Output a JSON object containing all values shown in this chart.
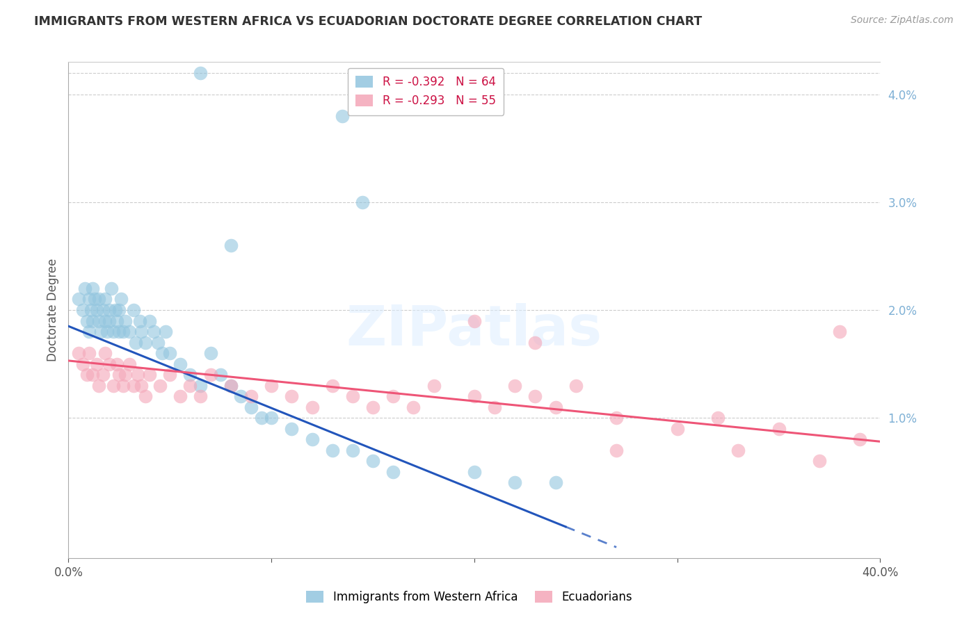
{
  "title": "IMMIGRANTS FROM WESTERN AFRICA VS ECUADORIAN DOCTORATE DEGREE CORRELATION CHART",
  "source": "Source: ZipAtlas.com",
  "ylabel": "Doctorate Degree",
  "xlim": [
    0.0,
    0.4
  ],
  "ylim": [
    -0.003,
    0.043
  ],
  "legend_blue_r": "R = -0.392",
  "legend_blue_n": "N = 64",
  "legend_pink_r": "R = -0.293",
  "legend_pink_n": "N = 55",
  "blue_color": "#92C5DE",
  "pink_color": "#F4A6B8",
  "trend_blue_color": "#2255BB",
  "trend_pink_color": "#EE5577",
  "ytick_vals": [
    0.01,
    0.02,
    0.03,
    0.04
  ],
  "ytick_labels": [
    "1.0%",
    "2.0%",
    "3.0%",
    "4.0%"
  ],
  "grid_color": "#CCCCCC",
  "watermark_text": "ZIPatlas",
  "blue_x": [
    0.005,
    0.007,
    0.008,
    0.009,
    0.01,
    0.01,
    0.011,
    0.012,
    0.012,
    0.013,
    0.014,
    0.015,
    0.015,
    0.016,
    0.017,
    0.018,
    0.018,
    0.019,
    0.02,
    0.02,
    0.021,
    0.022,
    0.023,
    0.024,
    0.025,
    0.025,
    0.026,
    0.027,
    0.028,
    0.03,
    0.032,
    0.033,
    0.035,
    0.036,
    0.038,
    0.04,
    0.042,
    0.044,
    0.046,
    0.048,
    0.05,
    0.055,
    0.06,
    0.065,
    0.07,
    0.075,
    0.08,
    0.085,
    0.09,
    0.095,
    0.1,
    0.11,
    0.12,
    0.13,
    0.14,
    0.15,
    0.16,
    0.2,
    0.22,
    0.24,
    0.135,
    0.145,
    0.065,
    0.08
  ],
  "blue_y": [
    0.021,
    0.02,
    0.022,
    0.019,
    0.021,
    0.018,
    0.02,
    0.019,
    0.022,
    0.021,
    0.02,
    0.019,
    0.021,
    0.018,
    0.02,
    0.019,
    0.021,
    0.018,
    0.02,
    0.019,
    0.022,
    0.018,
    0.02,
    0.019,
    0.018,
    0.02,
    0.021,
    0.018,
    0.019,
    0.018,
    0.02,
    0.017,
    0.019,
    0.018,
    0.017,
    0.019,
    0.018,
    0.017,
    0.016,
    0.018,
    0.016,
    0.015,
    0.014,
    0.013,
    0.016,
    0.014,
    0.013,
    0.012,
    0.011,
    0.01,
    0.01,
    0.009,
    0.008,
    0.007,
    0.007,
    0.006,
    0.005,
    0.005,
    0.004,
    0.004,
    0.038,
    0.03,
    0.042,
    0.026
  ],
  "pink_x": [
    0.005,
    0.007,
    0.009,
    0.01,
    0.012,
    0.014,
    0.015,
    0.017,
    0.018,
    0.02,
    0.022,
    0.024,
    0.025,
    0.027,
    0.028,
    0.03,
    0.032,
    0.034,
    0.036,
    0.038,
    0.04,
    0.045,
    0.05,
    0.055,
    0.06,
    0.065,
    0.07,
    0.08,
    0.09,
    0.1,
    0.11,
    0.12,
    0.13,
    0.14,
    0.15,
    0.16,
    0.17,
    0.18,
    0.2,
    0.21,
    0.22,
    0.23,
    0.24,
    0.25,
    0.27,
    0.3,
    0.32,
    0.35,
    0.38,
    0.2,
    0.23,
    0.27,
    0.33,
    0.37,
    0.39
  ],
  "pink_y": [
    0.016,
    0.015,
    0.014,
    0.016,
    0.014,
    0.015,
    0.013,
    0.014,
    0.016,
    0.015,
    0.013,
    0.015,
    0.014,
    0.013,
    0.014,
    0.015,
    0.013,
    0.014,
    0.013,
    0.012,
    0.014,
    0.013,
    0.014,
    0.012,
    0.013,
    0.012,
    0.014,
    0.013,
    0.012,
    0.013,
    0.012,
    0.011,
    0.013,
    0.012,
    0.011,
    0.012,
    0.011,
    0.013,
    0.012,
    0.011,
    0.013,
    0.012,
    0.011,
    0.013,
    0.01,
    0.009,
    0.01,
    0.009,
    0.018,
    0.019,
    0.017,
    0.007,
    0.007,
    0.006,
    0.008
  ],
  "blue_trend_x": [
    0.0,
    0.27
  ],
  "blue_trend_y_start": 0.0185,
  "blue_trend_y_end": -0.002,
  "blue_trend_solid_end": 0.245,
  "pink_trend_x": [
    0.0,
    0.4
  ],
  "pink_trend_y_start": 0.0153,
  "pink_trend_y_end": 0.0078
}
